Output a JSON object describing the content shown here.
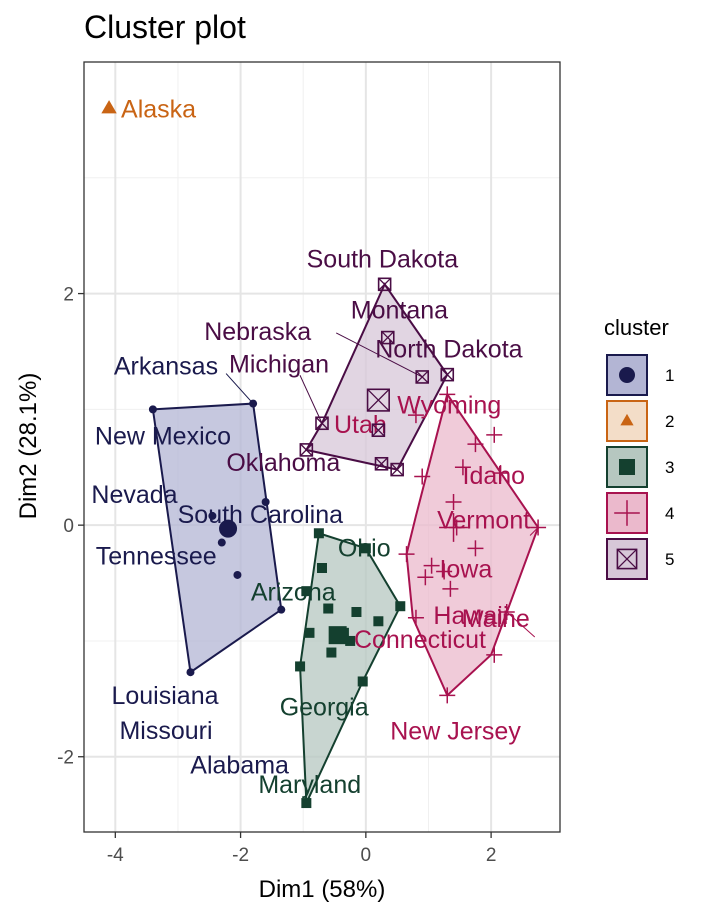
{
  "chart_data": {
    "type": "scatter",
    "title": "Cluster plot",
    "xlabel": "Dim1 (58%)",
    "ylabel": "Dim2 (28.1%)",
    "xlim": [
      -4.5,
      3.1
    ],
    "ylim": [
      -2.65,
      4.0
    ],
    "xticks": [
      -4,
      -2,
      0,
      2
    ],
    "yticks": [
      -2,
      0,
      2
    ],
    "xtick_labels": [
      "-4",
      "-2",
      "0",
      "2"
    ],
    "ytick_labels": [
      "-2",
      "0",
      "2"
    ],
    "grid": true,
    "legend": {
      "title": "cluster",
      "placement": "right",
      "entries": [
        "1",
        "2",
        "3",
        "4",
        "5"
      ]
    },
    "clusters": [
      {
        "name": "1",
        "color": "#1a1a4d",
        "fill": "#b3b5d4",
        "shape": "circle",
        "center": [
          -2.2,
          -0.03
        ],
        "hull": [
          [
            -3.4,
            1.0
          ],
          [
            -1.8,
            1.05
          ],
          [
            -1.35,
            -0.73
          ],
          [
            -2.8,
            -1.27
          ]
        ],
        "points": [
          {
            "label": "Arkansas",
            "x": -1.8,
            "y": 1.05
          },
          {
            "label": "New Mexico",
            "x": -3.4,
            "y": 1.0
          },
          {
            "label": "South Carolina",
            "x": -1.6,
            "y": 0.2
          },
          {
            "label": "Nevada",
            "x": -2.45,
            "y": 0.08
          },
          {
            "label": "Tennessee",
            "x": -2.3,
            "y": -0.15
          },
          {
            "label": "Missouri",
            "x": -2.05,
            "y": -0.43
          },
          {
            "label": "Alabama",
            "x": -1.35,
            "y": -0.73
          },
          {
            "label": "Louisiana",
            "x": -2.8,
            "y": -1.27
          }
        ]
      },
      {
        "name": "2",
        "color": "#c96414",
        "fill": "#f3ddc8",
        "shape": "triangle",
        "center": [
          -4.1,
          3.6
        ],
        "hull": [],
        "points": [
          {
            "label": "Alaska",
            "x": -4.1,
            "y": 3.6
          }
        ]
      },
      {
        "name": "3",
        "color": "#14402f",
        "fill": "#b6c7c0",
        "shape": "square",
        "center": [
          -0.45,
          -0.95
        ],
        "hull": [
          [
            -0.75,
            -0.07
          ],
          [
            0.0,
            -0.2
          ],
          [
            0.55,
            -0.7
          ],
          [
            -0.05,
            -1.35
          ],
          [
            -0.95,
            -2.4
          ],
          [
            -1.05,
            -1.22
          ]
        ],
        "points": [
          {
            "label": "Ohio",
            "x": 0.0,
            "y": -0.2
          },
          {
            "label": "Arizona",
            "x": -0.75,
            "y": -0.07
          },
          {
            "label": "Georgia",
            "x": -0.05,
            "y": -1.35
          },
          {
            "label": "Maryland",
            "x": -0.95,
            "y": -2.4
          },
          {
            "label": "",
            "x": -0.7,
            "y": -0.37
          },
          {
            "label": "",
            "x": -0.95,
            "y": -0.57
          },
          {
            "label": "",
            "x": -0.6,
            "y": -0.72
          },
          {
            "label": "",
            "x": -0.9,
            "y": -0.93
          },
          {
            "label": "",
            "x": -0.55,
            "y": -1.1
          },
          {
            "label": "",
            "x": -1.05,
            "y": -1.22
          },
          {
            "label": "",
            "x": -0.35,
            "y": -0.93
          },
          {
            "label": "",
            "x": -0.25,
            "y": -1.0
          },
          {
            "label": "",
            "x": -0.15,
            "y": -0.75
          },
          {
            "label": "",
            "x": 0.2,
            "y": -0.83
          },
          {
            "label": "",
            "x": 0.55,
            "y": -0.7
          }
        ]
      },
      {
        "name": "4",
        "color": "#a8124f",
        "fill": "#ebb9cc",
        "shape": "plus",
        "center": [
          1.4,
          -0.02
        ],
        "hull": [
          [
            1.3,
            1.13
          ],
          [
            2.75,
            -0.02
          ],
          [
            2.0,
            -1.12
          ],
          [
            1.3,
            -1.47
          ],
          [
            0.75,
            -0.8
          ],
          [
            0.65,
            -0.25
          ],
          [
            0.8,
            0.08
          ]
        ],
        "points": [
          {
            "label": "Utah",
            "x": 0.8,
            "y": 0.95
          },
          {
            "label": "Wyoming",
            "x": 1.3,
            "y": 1.13
          },
          {
            "label": "Idaho",
            "x": 2.15,
            "y": 0.45
          },
          {
            "label": "Vermont",
            "x": 2.75,
            "y": -0.02
          },
          {
            "label": "Iowa",
            "x": 1.75,
            "y": -0.2
          },
          {
            "label": "Hawaii",
            "x": 1.35,
            "y": -0.55
          },
          {
            "label": "Maine",
            "x": 2.25,
            "y": -0.75
          },
          {
            "label": "Connecticut",
            "x": 0.8,
            "y": -0.8
          },
          {
            "label": "New Jersey",
            "x": 1.3,
            "y": -1.47
          },
          {
            "label": "",
            "x": 1.55,
            "y": 0.5
          },
          {
            "label": "",
            "x": 1.75,
            "y": 0.7
          },
          {
            "label": "",
            "x": 2.05,
            "y": 0.78
          },
          {
            "label": "",
            "x": 0.9,
            "y": 0.42
          },
          {
            "label": "",
            "x": 1.4,
            "y": 0.2
          },
          {
            "label": "",
            "x": 1.45,
            "y": -0.02
          },
          {
            "label": "",
            "x": 0.65,
            "y": -0.25
          },
          {
            "label": "",
            "x": 1.05,
            "y": -0.35
          },
          {
            "label": "",
            "x": 0.95,
            "y": -0.45
          },
          {
            "label": "",
            "x": 1.25,
            "y": -0.4
          },
          {
            "label": "",
            "x": 2.05,
            "y": -1.12
          }
        ]
      },
      {
        "name": "5",
        "color": "#4a0d45",
        "fill": "#d7c7d8",
        "shape": "boxed-x",
        "center": [
          0.2,
          1.08
        ],
        "hull": [
          [
            -0.95,
            0.65
          ],
          [
            -0.7,
            0.88
          ],
          [
            0.3,
            2.08
          ],
          [
            1.3,
            1.3
          ],
          [
            0.5,
            0.48
          ]
        ],
        "points": [
          {
            "label": "South Dakota",
            "x": 0.3,
            "y": 2.08
          },
          {
            "label": "Montana",
            "x": 0.35,
            "y": 1.62
          },
          {
            "label": "Nebraska",
            "x": 0.9,
            "y": 1.28
          },
          {
            "label": "North Dakota",
            "x": 1.3,
            "y": 1.3
          },
          {
            "label": "Michigan",
            "x": -0.7,
            "y": 0.88
          },
          {
            "label": "Oklahoma",
            "x": -0.95,
            "y": 0.65
          },
          {
            "label": "",
            "x": 0.2,
            "y": 0.82
          },
          {
            "label": "",
            "x": 0.25,
            "y": 0.53
          },
          {
            "label": "",
            "x": 0.5,
            "y": 0.48
          }
        ]
      }
    ]
  }
}
